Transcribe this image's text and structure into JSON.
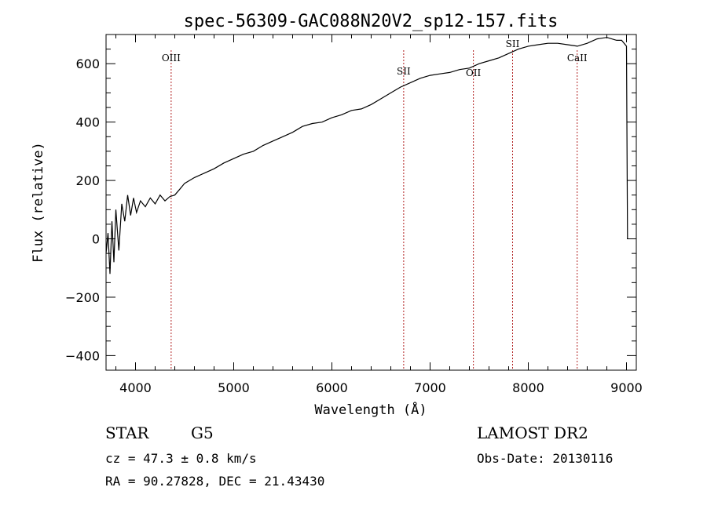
{
  "chart_data": {
    "type": "line",
    "title": "spec-56309-GAC088N20V2_sp12-157.fits",
    "xlabel": "Wavelength (Å)",
    "ylabel": "Flux (relative)",
    "xlim": [
      3700,
      9100
    ],
    "ylim": [
      -450,
      700
    ],
    "xticks": [
      4000,
      5000,
      6000,
      7000,
      8000,
      9000
    ],
    "yticks": [
      -400,
      -200,
      0,
      200,
      400,
      600
    ],
    "grid": false,
    "series": [
      {
        "x": [
          3700,
          3720,
          3740,
          3760,
          3780,
          3800,
          3830,
          3860,
          3890,
          3920,
          3950,
          3980,
          4010,
          4050,
          4100,
          4150,
          4200,
          4250,
          4300,
          4350,
          4400,
          4450,
          4500,
          4600,
          4700,
          4800,
          4900,
          5000,
          5100,
          5200,
          5300,
          5400,
          5500,
          5600,
          5700,
          5800,
          5900,
          6000,
          6100,
          6200,
          6300,
          6400,
          6500,
          6600,
          6700,
          6800,
          6900,
          7000,
          7100,
          7200,
          7300,
          7400,
          7500,
          7600,
          7700,
          7800,
          7900,
          8000,
          8100,
          8200,
          8300,
          8400,
          8500,
          8600,
          8700,
          8800,
          8900,
          8950,
          9000,
          9010
        ],
        "y": [
          -50,
          20,
          -120,
          60,
          -80,
          100,
          -40,
          120,
          60,
          150,
          80,
          140,
          90,
          130,
          110,
          140,
          120,
          150,
          130,
          145,
          150,
          170,
          190,
          210,
          225,
          240,
          260,
          275,
          290,
          300,
          320,
          335,
          350,
          365,
          385,
          395,
          400,
          415,
          425,
          440,
          445,
          460,
          480,
          500,
          520,
          535,
          550,
          560,
          565,
          570,
          580,
          585,
          600,
          610,
          620,
          635,
          650,
          660,
          665,
          670,
          670,
          665,
          660,
          670,
          685,
          690,
          680,
          680,
          660,
          0
        ]
      }
    ],
    "line_markers": [
      {
        "label": "OIII",
        "x": 4363
      },
      {
        "label": "SII",
        "x": 6731
      },
      {
        "label": "OII",
        "x": 7441
      },
      {
        "label": "SII",
        "x": 7840
      },
      {
        "label": "CaII",
        "x": 8498
      }
    ]
  },
  "info": {
    "object_class": "STAR",
    "subclass": "G5",
    "survey": "LAMOST DR2",
    "redshift": "cz =  47.3 ± 0.8 km/s",
    "obs_date": "Obs-Date: 20130116",
    "coords": "RA =  90.27828, DEC =  21.43430"
  },
  "colors": {
    "spectrum": "#000000",
    "marker_line": "#b22222",
    "background": "#ffffff"
  }
}
